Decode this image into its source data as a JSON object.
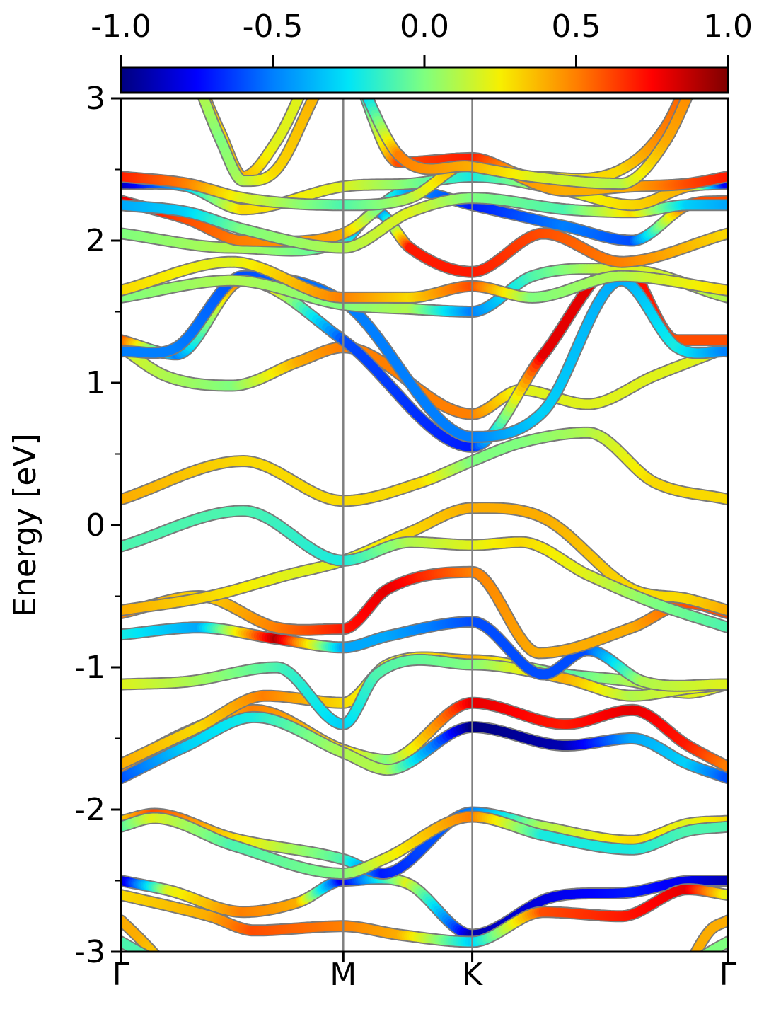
{
  "chart_data": {
    "type": "line",
    "ylabel": "Energy [eV]",
    "ylim": [
      -3,
      3
    ],
    "yticks": [
      "3",
      "2",
      "1",
      "0",
      "-1",
      "-2",
      "-3"
    ],
    "xticks": [
      "Γ",
      "M",
      "K",
      "Γ"
    ],
    "x_positions": [
      0,
      1,
      1.58,
      2.73
    ],
    "colorbar": {
      "range": [
        -1.0,
        1.0
      ],
      "ticks": [
        "-1.0",
        "-0.5",
        "0.0",
        "0.5",
        "1.0"
      ],
      "colormap": [
        "#00007f",
        "#0000ff",
        "#007fff",
        "#00e5f7",
        "#7fff7f",
        "#f7ef00",
        "#ff7f00",
        "#ff0000",
        "#7f0000"
      ]
    },
    "bands": [
      {
        "x": [
          0,
          0.22,
          0.55,
          0.8,
          1,
          1.29,
          1.58,
          1.93,
          2.3,
          2.58,
          2.73
        ],
        "y": [
          -2.5,
          -2.57,
          -2.72,
          -2.65,
          -2.5,
          -2.52,
          -2.88,
          -2.62,
          -2.58,
          -2.5,
          -2.5
        ],
        "c": [
          -0.9,
          0.2,
          0.5,
          0.4,
          -0.8,
          0.2,
          -0.9,
          -0.8,
          -0.7,
          -0.8,
          -0.9
        ]
      },
      {
        "x": [
          0,
          0.4,
          0.6,
          1,
          1.25,
          1.58,
          1.9,
          2.25,
          2.55,
          2.73
        ],
        "y": [
          -2.6,
          -2.75,
          -2.85,
          -2.82,
          -2.88,
          -2.93,
          -2.72,
          -2.75,
          -2.56,
          -2.6
        ],
        "c": [
          0.3,
          0.4,
          0.6,
          0.5,
          0.4,
          -0.3,
          0.6,
          0.7,
          0.8,
          0.2
        ]
      },
      {
        "x": [
          0,
          0.15,
          0.5,
          1,
          1.18,
          1.58,
          1.9,
          2.3,
          2.55,
          2.73
        ],
        "y": [
          -2.08,
          -2.03,
          -2.2,
          -2.35,
          -2.45,
          -2.02,
          -2.12,
          -2.22,
          -2.1,
          -2.08
        ],
        "c": [
          0.3,
          0.6,
          0.3,
          -0.1,
          -0.7,
          -0.5,
          0.1,
          0.3,
          0.2,
          0.3
        ]
      },
      {
        "x": [
          0,
          0.15,
          0.5,
          1,
          1.18,
          1.58,
          1.9,
          2.3,
          2.55,
          2.73
        ],
        "y": [
          -2.12,
          -2.06,
          -2.25,
          -2.45,
          -2.35,
          -2.05,
          -2.18,
          -2.28,
          -2.15,
          -2.12
        ],
        "c": [
          -0.1,
          0.2,
          -0.1,
          0.0,
          0.2,
          0.5,
          -0.2,
          -0.2,
          -0.1,
          -0.1
        ]
      },
      {
        "x": [
          0,
          0.3,
          0.6,
          1,
          1.2,
          1.58,
          2.0,
          2.3,
          2.55,
          2.73
        ],
        "y": [
          -1.7,
          -1.45,
          -1.3,
          -1.58,
          -1.65,
          -1.25,
          -1.4,
          -1.3,
          -1.55,
          -1.7
        ],
        "c": [
          0.5,
          0.2,
          0.5,
          0.3,
          0.0,
          0.8,
          0.7,
          0.8,
          0.7,
          0.5
        ]
      },
      {
        "x": [
          0,
          0.3,
          0.6,
          1,
          1.2,
          1.58,
          2.0,
          2.3,
          2.55,
          2.73
        ],
        "y": [
          -1.78,
          -1.55,
          -1.35,
          -1.6,
          -1.72,
          -1.42,
          -1.55,
          -1.5,
          -1.68,
          -1.78
        ],
        "c": [
          -0.6,
          -0.3,
          -0.2,
          0.1,
          0.1,
          -1.0,
          -0.9,
          -0.4,
          -0.3,
          -0.6
        ]
      },
      {
        "x": [
          0,
          0.35,
          0.65,
          1,
          1.2,
          1.58,
          2.0,
          2.3,
          2.55,
          2.73
        ],
        "y": [
          -1.68,
          -1.42,
          -1.2,
          -1.25,
          -0.98,
          -0.95,
          -1.05,
          -1.1,
          -1.18,
          -1.12
        ],
        "c": [
          0.4,
          0.3,
          0.5,
          0.3,
          0.2,
          0.4,
          -0.1,
          0.1,
          0.2,
          0.2
        ]
      },
      {
        "x": [
          0,
          0.3,
          0.7,
          1,
          1.15,
          1.58,
          2.0,
          2.3,
          2.55,
          2.73
        ],
        "y": [
          -1.12,
          -1.1,
          -1.0,
          -1.4,
          -1.05,
          -0.98,
          -1.08,
          -1.2,
          -1.15,
          -1.12
        ],
        "c": [
          0.2,
          0.1,
          -0.1,
          -0.3,
          -0.1,
          0.0,
          0.4,
          0.1,
          0.2,
          0.2
        ]
      },
      {
        "x": [
          0,
          0.35,
          0.7,
          1,
          1.2,
          1.58,
          1.9,
          2.1,
          2.35,
          2.73
        ],
        "y": [
          -0.77,
          -0.72,
          -0.8,
          -0.86,
          -0.78,
          -0.68,
          -1.05,
          -0.88,
          -1.1,
          -1.12
        ],
        "c": [
          -0.2,
          -0.4,
          0.9,
          -0.4,
          -0.4,
          -0.6,
          -0.6,
          -0.6,
          0.1,
          0.2
        ]
      },
      {
        "x": [
          0,
          0.35,
          0.7,
          1,
          1.2,
          1.58,
          1.88,
          2.3,
          2.55,
          2.73
        ],
        "y": [
          -0.62,
          -0.5,
          -0.72,
          -0.73,
          -0.45,
          -0.33,
          -0.9,
          -0.72,
          -0.55,
          -0.62
        ],
        "c": [
          0.5,
          0.3,
          0.5,
          0.7,
          0.8,
          0.5,
          0.4,
          0.4,
          0.6,
          0.6
        ]
      },
      {
        "x": [
          0,
          0.4,
          0.75,
          1,
          1.3,
          1.58,
          1.9,
          2.3,
          2.55,
          2.73
        ],
        "y": [
          -0.6,
          -0.5,
          -0.35,
          -0.25,
          -0.05,
          0.12,
          0.05,
          -0.45,
          -0.52,
          -0.6
        ],
        "c": [
          0.4,
          0.3,
          0.2,
          0.2,
          0.3,
          0.4,
          0.4,
          0.3,
          0.3,
          0.4
        ]
      },
      {
        "x": [
          0,
          0.55,
          1,
          1.3,
          1.58,
          1.8,
          2.1,
          2.4,
          2.73
        ],
        "y": [
          -0.15,
          0.1,
          -0.25,
          -0.12,
          -0.14,
          -0.12,
          -0.35,
          -0.55,
          -0.72
        ],
        "c": [
          -0.1,
          -0.1,
          -0.2,
          0.1,
          0.2,
          0.3,
          0.2,
          0.0,
          -0.1
        ]
      },
      {
        "x": [
          0,
          0.55,
          1,
          1.35,
          1.58,
          1.8,
          2.1,
          2.4,
          2.73
        ],
        "y": [
          0.18,
          0.45,
          0.17,
          0.3,
          0.45,
          0.58,
          0.65,
          0.3,
          0.18
        ],
        "c": [
          0.4,
          0.3,
          0.3,
          0.3,
          0.0,
          0.0,
          0.1,
          0.3,
          0.3
        ]
      },
      {
        "x": [
          0,
          0.2,
          0.5,
          0.8,
          1,
          1.58,
          1.8,
          2.1,
          2.4,
          2.73
        ],
        "y": [
          1.25,
          1.05,
          0.98,
          1.15,
          1.25,
          0.78,
          0.95,
          0.85,
          1.05,
          1.25
        ],
        "c": [
          0.2,
          0.1,
          0.0,
          0.4,
          0.5,
          0.5,
          0.2,
          0.2,
          0.2,
          0.2
        ]
      },
      {
        "x": [
          0,
          0.25,
          0.55,
          1,
          1.58,
          1.9,
          2.25,
          2.5,
          2.73
        ],
        "y": [
          1.3,
          1.2,
          1.72,
          1.3,
          0.55,
          1.2,
          1.85,
          1.3,
          1.3
        ],
        "c": [
          0.6,
          -0.5,
          0.6,
          -0.6,
          -0.7,
          0.8,
          0.8,
          0.6,
          0.6
        ]
      },
      {
        "x": [
          0,
          0.25,
          0.55,
          1,
          1.58,
          1.9,
          2.25,
          2.5,
          2.73
        ],
        "y": [
          1.22,
          1.25,
          1.75,
          1.57,
          0.62,
          0.8,
          1.72,
          1.25,
          1.22
        ],
        "c": [
          -0.5,
          -0.5,
          -0.6,
          -0.5,
          -0.5,
          -0.3,
          -0.4,
          -0.2,
          -0.5
        ]
      },
      {
        "x": [
          0,
          0.5,
          1,
          1.3,
          1.58,
          1.85,
          2.25,
          2.73
        ],
        "y": [
          1.6,
          1.72,
          1.55,
          1.52,
          1.5,
          1.75,
          1.8,
          1.6
        ],
        "c": [
          0.0,
          0.1,
          0.0,
          0.1,
          -0.5,
          -0.1,
          0.2,
          0.1
        ]
      },
      {
        "x": [
          0,
          0.5,
          1,
          1.3,
          1.58,
          1.85,
          2.25,
          2.73
        ],
        "y": [
          1.65,
          1.85,
          1.6,
          1.6,
          1.68,
          1.6,
          1.75,
          1.65
        ],
        "c": [
          0.3,
          0.2,
          0.5,
          0.3,
          0.6,
          0.0,
          0.1,
          0.3
        ]
      },
      {
        "x": [
          0,
          0.5,
          1,
          1.15,
          1.3,
          1.58,
          1.9,
          2.25,
          2.73
        ],
        "y": [
          2.05,
          1.95,
          2.0,
          2.2,
          1.95,
          1.78,
          2.05,
          1.85,
          2.05
        ],
        "c": [
          0.0,
          0.1,
          -0.1,
          -0.7,
          0.7,
          0.7,
          0.6,
          0.5,
          0.3
        ]
      },
      {
        "x": [
          0,
          0.3,
          0.55,
          1,
          1.3,
          1.58,
          2.0,
          2.3,
          2.55,
          2.73
        ],
        "y": [
          2.28,
          2.15,
          2.0,
          2.05,
          2.35,
          2.25,
          2.1,
          2.0,
          2.25,
          2.28
        ],
        "c": [
          0.8,
          0.6,
          0.5,
          0.4,
          -0.4,
          -0.7,
          -0.5,
          -0.6,
          0.6,
          0.6
        ]
      },
      {
        "x": [
          0,
          0.3,
          0.55,
          1,
          1.3,
          1.58,
          2.0,
          2.3,
          2.55,
          2.73
        ],
        "y": [
          2.25,
          2.2,
          2.08,
          1.95,
          2.2,
          2.3,
          2.22,
          2.2,
          2.25,
          2.25
        ],
        "c": [
          -0.4,
          -0.3,
          0.0,
          0.1,
          0.2,
          0.0,
          -0.1,
          0.3,
          -0.3,
          -0.4
        ]
      },
      {
        "x": [
          0,
          0.3,
          0.55,
          1,
          1.3,
          1.58,
          2.0,
          2.3,
          2.55,
          2.73
        ],
        "y": [
          2.4,
          2.38,
          2.22,
          2.38,
          2.4,
          2.45,
          2.35,
          2.25,
          2.38,
          2.4
        ],
        "c": [
          -0.9,
          -0.3,
          0.3,
          0.2,
          0.0,
          -0.2,
          0.2,
          0.3,
          0.4,
          -0.8
        ]
      },
      {
        "x": [
          0,
          0.3,
          0.55,
          1,
          1.3,
          1.58,
          2.0,
          2.3,
          2.55,
          2.73
        ],
        "y": [
          2.45,
          2.4,
          2.3,
          2.25,
          2.3,
          2.55,
          2.35,
          2.38,
          2.4,
          2.45
        ],
        "c": [
          0.7,
          0.5,
          0.2,
          -0.1,
          0.1,
          0.5,
          0.4,
          0.4,
          0.6,
          0.7
        ]
      },
      {
        "x": [
          0.3,
          0.45,
          0.55,
          0.7,
          0.9,
          1.0
        ],
        "y": [
          3.3,
          2.75,
          2.45,
          2.7,
          3.3,
          3.4
        ],
        "c": [
          0.5,
          0.3,
          0.4,
          0.2,
          0.2,
          0.2
        ]
      },
      {
        "x": [
          0.3,
          0.45,
          0.55,
          0.7,
          0.9,
          1.0
        ],
        "y": [
          3.3,
          2.7,
          2.42,
          2.5,
          3.1,
          3.3
        ],
        "c": [
          0.2,
          0.0,
          0.1,
          0.3,
          0.4,
          0.4
        ]
      },
      {
        "x": [
          1.05,
          1.25,
          1.58,
          1.85,
          2.25,
          2.45,
          2.6
        ],
        "y": [
          3.2,
          2.55,
          2.58,
          2.45,
          2.5,
          2.8,
          3.3
        ],
        "c": [
          -0.4,
          0.6,
          0.7,
          0.3,
          0.3,
          0.5,
          0.6
        ]
      },
      {
        "x": [
          1.05,
          1.25,
          1.58,
          1.85,
          2.25,
          2.45,
          2.6
        ],
        "y": [
          3.2,
          2.6,
          2.52,
          2.45,
          2.4,
          2.7,
          3.2
        ],
        "c": [
          -0.6,
          0.5,
          0.4,
          0.2,
          0.1,
          0.4,
          0.5
        ]
      },
      {
        "x": [
          0,
          0.08,
          0.2
        ],
        "y": [
          -2.78,
          -2.9,
          -3.1
        ],
        "c": [
          0.4,
          0.4,
          0.3
        ]
      },
      {
        "x": [
          0,
          0.08,
          0.2
        ],
        "y": [
          -2.93,
          -3.0,
          -3.1
        ],
        "c": [
          -0.1,
          -0.1,
          -0.1
        ]
      },
      {
        "x": [
          2.55,
          2.65,
          2.73
        ],
        "y": [
          -3.1,
          -2.85,
          -2.78
        ],
        "c": [
          0.4,
          0.4,
          0.4
        ]
      },
      {
        "x": [
          2.55,
          2.65,
          2.73
        ],
        "y": [
          -3.1,
          -3.0,
          -2.93
        ],
        "c": [
          0.0,
          0.0,
          0.0
        ]
      }
    ]
  }
}
